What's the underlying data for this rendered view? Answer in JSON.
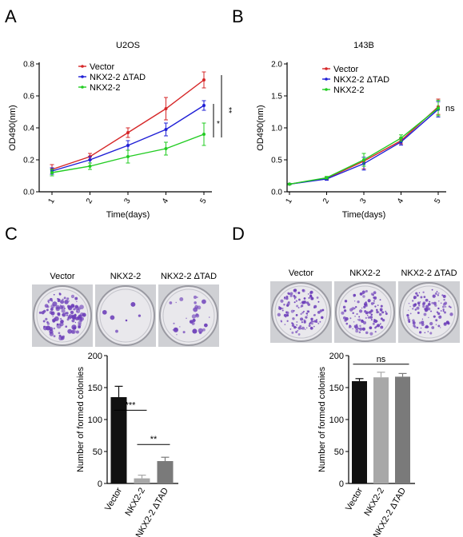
{
  "panels": {
    "A": {
      "letter": "A"
    },
    "B": {
      "letter": "B"
    },
    "C": {
      "letter": "C"
    },
    "D": {
      "letter": "D"
    }
  },
  "colors": {
    "vector": "#d62728",
    "tad": "#1f1fd6",
    "nkx": "#22cc22",
    "bar_vector": "#111111",
    "bar_nkx": "#a8a8a8",
    "bar_tad": "#7a7a7a",
    "colony": "#6a3bb8"
  },
  "photos": {
    "C": {
      "labels": [
        "Vector",
        "NKX2-2",
        "NKX2-2 ΔTAD"
      ],
      "density": [
        1.0,
        0.05,
        0.25
      ]
    },
    "D": {
      "labels": [
        "Vector",
        "NKX2-2",
        "NKX2-2 ΔTAD"
      ],
      "density": [
        1.0,
        0.9,
        0.9
      ]
    }
  },
  "chart_data": [
    {
      "id": "A",
      "type": "line",
      "title": "U2OS",
      "xlabel": "Time(days)",
      "ylabel": "OD490(nm)",
      "x": [
        1,
        2,
        3,
        4,
        5
      ],
      "xticks": [
        "1",
        "2",
        "3",
        "4",
        "5"
      ],
      "ylim": [
        0,
        0.8
      ],
      "yticks": [
        "0.0",
        "0.2",
        "0.4",
        "0.6",
        "0.8"
      ],
      "legend_position": "top-left",
      "series": [
        {
          "name": "Vector",
          "color": "#d62728",
          "values": [
            0.14,
            0.22,
            0.37,
            0.52,
            0.7
          ],
          "errors": [
            0.03,
            0.02,
            0.03,
            0.07,
            0.05
          ]
        },
        {
          "name": "NKX2-2 ΔTAD",
          "color": "#1f1fd6",
          "values": [
            0.13,
            0.2,
            0.29,
            0.39,
            0.54
          ],
          "errors": [
            0.02,
            0.02,
            0.03,
            0.04,
            0.03
          ]
        },
        {
          "name": "NKX2-2",
          "color": "#22cc22",
          "values": [
            0.12,
            0.16,
            0.22,
            0.27,
            0.36
          ],
          "errors": [
            0.02,
            0.02,
            0.04,
            0.04,
            0.07
          ]
        }
      ],
      "significance": [
        "*",
        "**"
      ]
    },
    {
      "id": "B",
      "type": "line",
      "title": "143B",
      "xlabel": "Time(days)",
      "ylabel": "OD490(nm)",
      "x": [
        1,
        2,
        3,
        4,
        5
      ],
      "xticks": [
        "1",
        "2",
        "3",
        "4",
        "5"
      ],
      "ylim": [
        0,
        2.0
      ],
      "yticks": [
        "0.0",
        "0.5",
        "1.0",
        "1.5",
        "2.0"
      ],
      "legend_position": "top-left",
      "series": [
        {
          "name": "Vector",
          "color": "#d62728",
          "values": [
            0.12,
            0.21,
            0.48,
            0.8,
            1.33
          ],
          "errors": [
            0.01,
            0.02,
            0.12,
            0.05,
            0.12
          ]
        },
        {
          "name": "NKX2-2 ΔTAD",
          "color": "#1f1fd6",
          "values": [
            0.12,
            0.2,
            0.44,
            0.78,
            1.29
          ],
          "errors": [
            0.01,
            0.02,
            0.1,
            0.05,
            0.12
          ]
        },
        {
          "name": "NKX2-2",
          "color": "#22cc22",
          "values": [
            0.12,
            0.22,
            0.5,
            0.84,
            1.31
          ],
          "errors": [
            0.01,
            0.02,
            0.1,
            0.05,
            0.12
          ]
        }
      ],
      "significance": [
        "ns"
      ]
    },
    {
      "id": "C",
      "type": "bar",
      "ylabel": "Number of formed colonies",
      "categories": [
        "Vector",
        "NKX2-2",
        "NKX2-2 ΔTAD"
      ],
      "values": [
        135,
        8,
        35
      ],
      "errors": [
        17,
        5,
        6
      ],
      "ylim": [
        0,
        200
      ],
      "yticks": [
        "0",
        "50",
        "100",
        "150",
        "200"
      ],
      "significance": [
        "***",
        "**"
      ]
    },
    {
      "id": "D",
      "type": "bar",
      "ylabel": "Number of formed colonies",
      "categories": [
        "Vector",
        "NKX2-2",
        "NKX2-2 ΔTAD"
      ],
      "values": [
        160,
        166,
        167
      ],
      "errors": [
        4,
        8,
        5
      ],
      "ylim": [
        0,
        200
      ],
      "yticks": [
        "0",
        "50",
        "100",
        "150",
        "200"
      ],
      "significance": [
        "ns"
      ]
    }
  ]
}
